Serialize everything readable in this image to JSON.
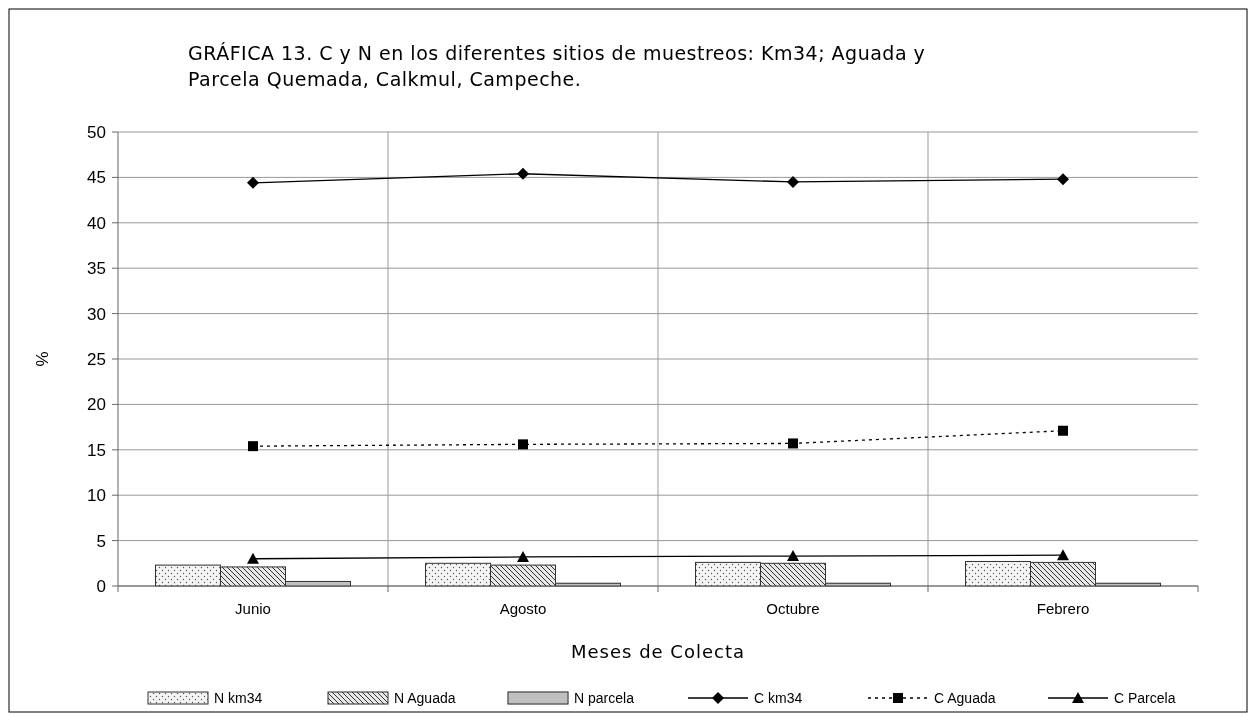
{
  "chart_data": {
    "type": "bar",
    "title": "GRÁFICA 13. C y N en los diferentes sitios de muestreos: Km34; Aguada y Parcela Quemada, Calkmul, Campeche.",
    "xlabel": "Meses de Colecta",
    "ylabel": "%",
    "categories": [
      "Junio",
      "Agosto",
      "Octubre",
      "Febrero"
    ],
    "series": [
      {
        "name": "N km34",
        "color": "#f4f4f4",
        "values": [
          2.3,
          2.5,
          2.6,
          2.7
        ]
      },
      {
        "name": "N Aguada",
        "color": "#e8e8e8",
        "values": [
          2.1,
          2.3,
          2.5,
          2.6
        ]
      },
      {
        "name": "N parcela",
        "color": "#c0c0c0",
        "values": [
          0.5,
          0.3,
          0.3,
          0.3
        ]
      },
      {
        "name": "C km34",
        "type": "line",
        "color": "#000000",
        "marker": "diamond",
        "line_style": "solid",
        "values": [
          44.4,
          45.4,
          44.5,
          44.8
        ]
      },
      {
        "name": "C Aguada",
        "type": "line",
        "color": "#000000",
        "marker": "square",
        "line_style": "dotted",
        "values": [
          15.4,
          15.6,
          15.7,
          17.1
        ]
      },
      {
        "name": "C Parcela",
        "type": "line",
        "color": "#000000",
        "marker": "triangle",
        "line_style": "solid",
        "values": [
          3.0,
          3.2,
          3.3,
          3.4
        ]
      }
    ],
    "ylim": [
      0,
      50
    ],
    "yticks": [
      0,
      5,
      10,
      15,
      20,
      25,
      30,
      35,
      40,
      45,
      50
    ],
    "grid": true,
    "legend": "bottom"
  }
}
